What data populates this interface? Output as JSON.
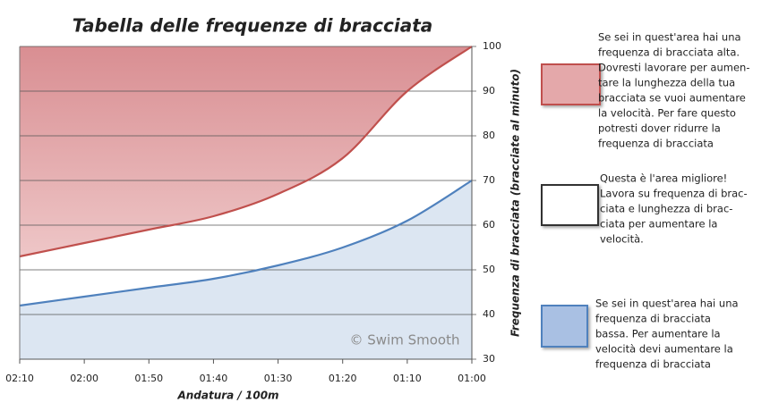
{
  "chart_data": {
    "type": "area",
    "title": "Tabella delle frequenze di bracciata",
    "x_label": "Andatura / 100m",
    "y_label": "Frequenza di bracciata (bracciate al minuto)",
    "watermark": "© Swim Smooth",
    "categories": [
      "02:10",
      "02:00",
      "01:50",
      "01:40",
      "01:30",
      "01:20",
      "01:10",
      "01:00"
    ],
    "series": [
      {
        "color": "#c0504d",
        "fill": "#e6b4b6",
        "fill_to": "top",
        "values": [
          53,
          56,
          59,
          62,
          67,
          75,
          90,
          100
        ]
      },
      {
        "color": "#4f81bd",
        "fill": "#dce6f2",
        "fill_to": "bottom",
        "values": [
          42,
          44,
          46,
          48,
          51,
          55,
          61,
          70
        ]
      }
    ],
    "ylim": [
      30,
      100
    ],
    "yticks": [
      30,
      40,
      50,
      60,
      70,
      80,
      90,
      100
    ],
    "y_axis_side": "right",
    "grid": true,
    "notes": [
      {
        "color": "#e4a8aa",
        "border": "#c0504d",
        "lines": [
          "Se sei in quest'area hai una",
          "frequenza di bracciata alta.",
          "Dovresti lavorare per aumen-",
          "tare la lunghezza della tua",
          "bracciata se vuoi aumentare",
          "la velocità. Per fare questo",
          "potresti dover ridurre la",
          "frequenza di bracciata"
        ]
      },
      {
        "color": "#ffffff",
        "border": "#333333",
        "lines": [
          "Questa è l'area migliore!",
          "Lavora su frequenza di brac-",
          "ciata e lunghezza di brac-",
          "ciata per aumentare la",
          "velocità."
        ]
      },
      {
        "color": "#a9c0e3",
        "border": "#4f81bd",
        "lines": [
          "Se sei in quest'area hai una",
          "frequenza di bracciata",
          "bassa. Per aumentare la",
          "velocità  devi aumentare la",
          "frequenza di bracciata"
        ]
      }
    ]
  }
}
